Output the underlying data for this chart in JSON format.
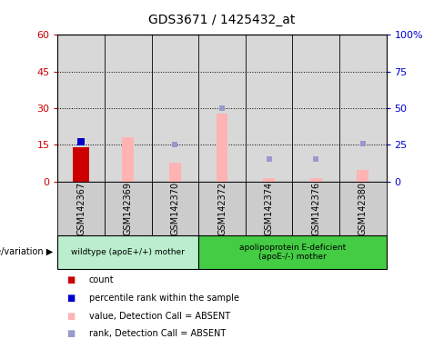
{
  "title": "GDS3671 / 1425432_at",
  "samples": [
    "GSM142367",
    "GSM142369",
    "GSM142370",
    "GSM142372",
    "GSM142374",
    "GSM142376",
    "GSM142380"
  ],
  "count_values": [
    14,
    0,
    0,
    0,
    0,
    0,
    0
  ],
  "count_color": "#cc0000",
  "percentile_values": [
    27,
    0,
    0,
    0,
    0,
    0,
    0
  ],
  "percentile_color": "#0000cc",
  "value_absent": [
    0,
    30,
    13,
    46,
    2,
    2,
    8
  ],
  "value_absent_color": "#ffb3b3",
  "rank_absent": [
    0,
    0,
    25,
    50,
    15,
    15,
    26
  ],
  "rank_absent_color": "#9999cc",
  "left_ylim": [
    0,
    60
  ],
  "right_ylim": [
    0,
    100
  ],
  "left_yticks": [
    0,
    15,
    30,
    45,
    60
  ],
  "right_yticks": [
    0,
    25,
    50,
    75,
    100
  ],
  "right_yticklabels": [
    "0",
    "25",
    "50",
    "75",
    "100%"
  ],
  "left_ytick_color": "#cc0000",
  "right_ytick_color": "#0000cc",
  "group1_count": 3,
  "group2_count": 4,
  "group1_label": "wildtype (apoE+/+) mother",
  "group2_label": "apolipoprotein E-deficient\n(apoE-/-) mother",
  "group1_color": "#bbeecc",
  "group2_color": "#44cc44",
  "genotype_label": "genotype/variation",
  "legend_items": [
    {
      "label": "count",
      "color": "#cc0000"
    },
    {
      "label": "percentile rank within the sample",
      "color": "#0000cc"
    },
    {
      "label": "value, Detection Call = ABSENT",
      "color": "#ffb3b3"
    },
    {
      "label": "rank, Detection Call = ABSENT",
      "color": "#9999cc"
    }
  ],
  "plot_bg_color": "#d8d8d8",
  "sample_bg_color": "#cccccc",
  "bar_width": 0.35,
  "pink_bar_width": 0.25
}
